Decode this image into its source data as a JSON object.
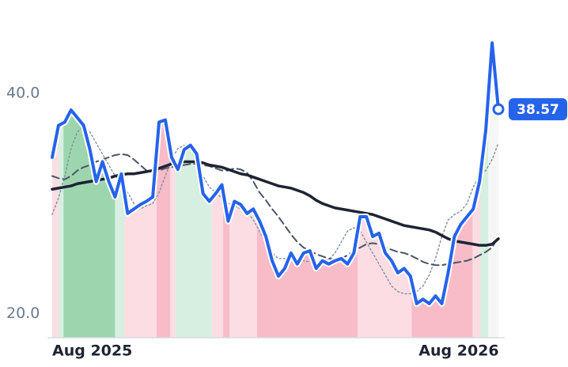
{
  "chart_data": {
    "type": "line",
    "xlim": [
      0,
      71
    ],
    "ylim": [
      17.8,
      48.5
    ],
    "xticks": [
      {
        "value": 0,
        "label": "Aug 2025"
      },
      {
        "value": 64.7,
        "label": "Aug 2026"
      }
    ],
    "yticks": [
      {
        "value": 20,
        "label": "20.0"
      },
      {
        "value": 40,
        "label": "40.0"
      }
    ],
    "grid": false,
    "series": [
      {
        "color": "#2563eb",
        "style": "solid",
        "width": 4,
        "values": [
          34.2,
          37.1,
          37.4,
          38.5,
          37.8,
          37.1,
          34.9,
          32.0,
          33.8,
          32.0,
          30.6,
          32.7,
          29.1,
          29.5,
          29.9,
          30.2,
          30.6,
          37.4,
          37.6,
          34.2,
          33.1,
          34.9,
          35.3,
          34.5,
          30.9,
          30.2,
          30.9,
          31.7,
          28.4,
          30.2,
          29.9,
          29.1,
          29.5,
          28.4,
          27.0,
          24.8,
          23.4,
          24.1,
          25.5,
          24.5,
          25.5,
          25.7,
          24.1,
          24.8,
          24.5,
          24.8,
          25.0,
          24.5,
          25.5,
          28.8,
          28.8,
          27.0,
          27.3,
          25.5,
          24.8,
          23.7,
          24.1,
          23.4,
          20.9,
          21.3,
          20.9,
          21.6,
          20.9,
          23.7,
          27.0,
          28.1,
          28.8,
          29.5,
          32.0,
          36.7,
          44.6,
          38.57
        ]
      },
      {
        "color": "#1e2433",
        "style": "solid",
        "width": 3.5,
        "values": [
          31.3,
          31.4,
          31.5,
          31.6,
          31.8,
          31.9,
          32.0,
          32.1,
          32.2,
          32.3,
          32.5,
          32.6,
          32.7,
          32.7,
          32.8,
          32.9,
          33.0,
          33.2,
          33.4,
          33.6,
          33.7,
          33.8,
          33.8,
          33.8,
          33.7,
          33.5,
          33.4,
          33.3,
          33.1,
          32.9,
          32.7,
          32.6,
          32.4,
          32.2,
          32.0,
          31.8,
          31.6,
          31.5,
          31.4,
          31.2,
          31.0,
          30.7,
          30.3,
          30.0,
          29.8,
          29.6,
          29.5,
          29.4,
          29.3,
          29.2,
          29.1,
          29.0,
          28.8,
          28.6,
          28.4,
          28.2,
          28.0,
          27.9,
          27.8,
          27.7,
          27.6,
          27.4,
          27.1,
          26.8,
          26.6,
          26.5,
          26.4,
          26.3,
          26.2,
          26.2,
          26.3,
          26.8
        ]
      },
      {
        "color": "#4a5568",
        "style": "dashed",
        "width": 2,
        "values": [
          32.5,
          32.3,
          32.2,
          32.5,
          33.0,
          33.3,
          33.5,
          33.8,
          34.0,
          34.2,
          34.4,
          34.5,
          34.4,
          34.0,
          33.5,
          33.0,
          32.9,
          33.0,
          33.2,
          33.3,
          33.4,
          33.5,
          33.6,
          33.6,
          33.5,
          33.4,
          33.2,
          33.0,
          33.0,
          33.2,
          33.1,
          32.8,
          32.0,
          31.0,
          30.3,
          29.5,
          28.8,
          28.0,
          27.2,
          26.5,
          26.0,
          25.7,
          25.4,
          25.2,
          25.0,
          24.9,
          25.0,
          25.3,
          25.7,
          26.0,
          26.3,
          26.4,
          26.3,
          26.0,
          25.8,
          25.6,
          25.5,
          25.3,
          25.0,
          24.7,
          24.5,
          24.4,
          24.4,
          24.5,
          24.6,
          24.7,
          24.8,
          25.0,
          25.3,
          25.6,
          26.0,
          27.0
        ]
      },
      {
        "color": "#8a93a3",
        "style": "dotted",
        "width": 1.5,
        "values": [
          29.0,
          30.5,
          32.5,
          35.0,
          36.5,
          37.0,
          36.5,
          35.5,
          34.5,
          33.5,
          32.5,
          32.0,
          31.0,
          30.0,
          29.5,
          29.8,
          30.0,
          31.0,
          32.5,
          34.0,
          35.0,
          35.3,
          35.0,
          34.0,
          32.5,
          31.5,
          31.0,
          30.5,
          30.0,
          29.8,
          29.5,
          29.3,
          28.5,
          27.5,
          26.5,
          25.5,
          25.0,
          25.0,
          25.0,
          25.0,
          24.8,
          24.7,
          24.7,
          24.8,
          24.9,
          25.5,
          26.5,
          27.5,
          27.8,
          27.5,
          26.5,
          25.5,
          24.5,
          23.5,
          22.5,
          22.0,
          21.8,
          21.8,
          22.0,
          22.5,
          23.5,
          25.0,
          27.0,
          28.5,
          29.0,
          29.3,
          30.0,
          31.5,
          32.5,
          33.0,
          34.0,
          35.5
        ]
      }
    ],
    "bands": [
      {
        "from": 0,
        "to": 1,
        "color": "#fcdde3"
      },
      {
        "from": 1,
        "to": 1.8,
        "color": "#d6efe0"
      },
      {
        "from": 1.8,
        "to": 10,
        "color": "#9dd6ae"
      },
      {
        "from": 10,
        "to": 11.5,
        "color": "#d6efe0"
      },
      {
        "from": 11.5,
        "to": 16.6,
        "color": "#fcdde3"
      },
      {
        "from": 16.6,
        "to": 18.8,
        "color": "#f8bcc8"
      },
      {
        "from": 18.8,
        "to": 19.6,
        "color": "#fcdde3"
      },
      {
        "from": 19.6,
        "to": 25.4,
        "color": "#d6efe0"
      },
      {
        "from": 25.4,
        "to": 27.2,
        "color": "#fcdde3"
      },
      {
        "from": 27.2,
        "to": 28.2,
        "color": "#f8bcc8"
      },
      {
        "from": 28.2,
        "to": 32.6,
        "color": "#fcdde3"
      },
      {
        "from": 32.6,
        "to": 48.6,
        "color": "#f8bcc8"
      },
      {
        "from": 48.6,
        "to": 57.2,
        "color": "#fcdde3"
      },
      {
        "from": 57.2,
        "to": 66.9,
        "color": "#f8bcc8"
      },
      {
        "from": 66.9,
        "to": 68.1,
        "color": "#fcdde3"
      },
      {
        "from": 68.1,
        "to": 69.4,
        "color": "#d6efe0"
      },
      {
        "from": 69.4,
        "to": 71,
        "color": "#f4f7f5"
      }
    ]
  }
}
